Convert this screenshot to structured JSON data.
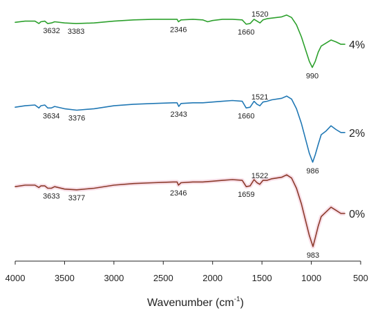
{
  "chart_data": {
    "type": "line",
    "title": "",
    "xlabel": "Wavenumber (cm",
    "xlabel_sup": "-1",
    "xlabel_close": ")",
    "ylabel": "",
    "xlim": [
      4000,
      500
    ],
    "x_reversed": true,
    "xticks": [
      4000,
      3500,
      3000,
      2500,
      2000,
      1500,
      1000,
      500
    ],
    "grid": false,
    "series": [
      {
        "label": "4%",
        "color": "#2ca02c",
        "x": [
          4000,
          3900,
          3800,
          3760,
          3740,
          3700,
          3670,
          3632,
          3600,
          3500,
          3383,
          3200,
          3000,
          2800,
          2600,
          2400,
          2360,
          2346,
          2320,
          2200,
          2100,
          2050,
          2000,
          1900,
          1800,
          1700,
          1660,
          1620,
          1580,
          1550,
          1520,
          1490,
          1450,
          1400,
          1300,
          1250,
          1200,
          1150,
          1100,
          1050,
          1020,
          990,
          960,
          930,
          900,
          850,
          800,
          750,
          700,
          660
        ],
        "y": [
          0.94,
          0.96,
          0.96,
          0.92,
          0.95,
          0.96,
          0.92,
          0.93,
          0.95,
          0.93,
          0.92,
          0.93,
          0.96,
          0.98,
          0.99,
          0.99,
          0.99,
          0.95,
          0.98,
          0.99,
          0.98,
          0.95,
          0.97,
          0.99,
          0.99,
          0.98,
          0.91,
          0.92,
          0.99,
          0.96,
          0.93,
          0.98,
          1.0,
          1.01,
          1.03,
          1.06,
          1.02,
          0.9,
          0.7,
          0.45,
          0.3,
          0.2,
          0.3,
          0.45,
          0.55,
          0.6,
          0.65,
          0.62,
          0.58,
          0.58
        ],
        "peaks": [
          {
            "x": 3632,
            "label": "3632"
          },
          {
            "x": 3383,
            "label": "3383"
          },
          {
            "x": 2346,
            "label": "2346"
          },
          {
            "x": 1660,
            "label": "1660"
          },
          {
            "x": 1520,
            "label": "1520"
          },
          {
            "x": 990,
            "label": "990"
          }
        ]
      },
      {
        "label": "2%",
        "color": "#1f77b4",
        "x": [
          4000,
          3900,
          3800,
          3760,
          3740,
          3700,
          3670,
          3634,
          3600,
          3500,
          3376,
          3200,
          3000,
          2800,
          2600,
          2400,
          2360,
          2343,
          2320,
          2200,
          2100,
          2000,
          1900,
          1800,
          1700,
          1660,
          1620,
          1580,
          1550,
          1521,
          1490,
          1450,
          1400,
          1300,
          1250,
          1200,
          1150,
          1100,
          1050,
          1020,
          986,
          960,
          930,
          900,
          850,
          800,
          750,
          700,
          660
        ],
        "y": [
          0.92,
          0.94,
          0.95,
          0.91,
          0.94,
          0.95,
          0.91,
          0.91,
          0.93,
          0.9,
          0.88,
          0.9,
          0.94,
          0.96,
          0.97,
          0.98,
          0.98,
          0.93,
          0.97,
          0.98,
          0.98,
          0.99,
          1.0,
          1.01,
          1.0,
          0.91,
          0.92,
          1.0,
          0.96,
          0.94,
          0.99,
          1.0,
          1.02,
          1.04,
          1.07,
          1.03,
          0.9,
          0.7,
          0.45,
          0.3,
          0.18,
          0.28,
          0.42,
          0.55,
          0.6,
          0.67,
          0.62,
          0.58,
          0.58
        ],
        "peaks": [
          {
            "x": 3634,
            "label": "3634"
          },
          {
            "x": 3376,
            "label": "3376"
          },
          {
            "x": 2343,
            "label": "2343"
          },
          {
            "x": 1660,
            "label": "1660"
          },
          {
            "x": 1521,
            "label": "1521"
          },
          {
            "x": 986,
            "label": "986"
          }
        ]
      },
      {
        "label": "0%",
        "color": "#8b3a2a",
        "x": [
          4000,
          3900,
          3800,
          3760,
          3740,
          3700,
          3670,
          3633,
          3600,
          3500,
          3377,
          3200,
          3000,
          2800,
          2600,
          2400,
          2360,
          2346,
          2320,
          2200,
          2100,
          2000,
          1900,
          1800,
          1700,
          1659,
          1620,
          1580,
          1550,
          1522,
          1490,
          1450,
          1400,
          1300,
          1250,
          1200,
          1150,
          1100,
          1050,
          1020,
          983,
          960,
          930,
          900,
          850,
          800,
          750,
          700,
          660
        ],
        "y": [
          0.92,
          0.94,
          0.94,
          0.91,
          0.93,
          0.93,
          0.9,
          0.9,
          0.92,
          0.89,
          0.88,
          0.9,
          0.94,
          0.96,
          0.97,
          0.98,
          0.98,
          0.94,
          0.97,
          0.98,
          0.98,
          0.99,
          1.0,
          1.01,
          1.0,
          0.92,
          0.93,
          1.01,
          0.97,
          0.95,
          1.0,
          1.0,
          1.02,
          1.04,
          1.07,
          1.03,
          0.9,
          0.7,
          0.45,
          0.3,
          0.16,
          0.27,
          0.42,
          0.54,
          0.6,
          0.66,
          0.62,
          0.58,
          0.58
        ],
        "peaks": [
          {
            "x": 3633,
            "label": "3633"
          },
          {
            "x": 3377,
            "label": "3377"
          },
          {
            "x": 2346,
            "label": "2346"
          },
          {
            "x": 1659,
            "label": "1659"
          },
          {
            "x": 1522,
            "label": "1522"
          },
          {
            "x": 983,
            "label": "983"
          }
        ]
      }
    ]
  }
}
